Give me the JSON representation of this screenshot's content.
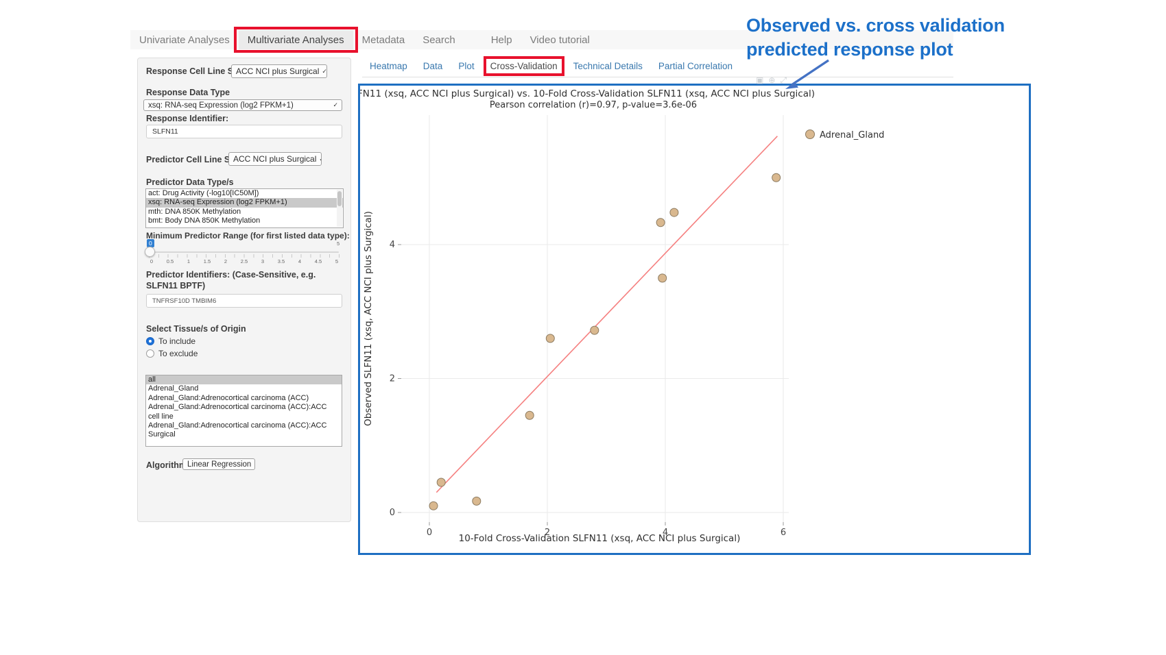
{
  "navbar": {
    "items": [
      {
        "label": "Univariate Analyses",
        "active": false,
        "highlighted": false
      },
      {
        "label": "Multivariate Analyses",
        "active": true,
        "highlighted": true
      },
      {
        "label": "Metadata",
        "active": false,
        "highlighted": false
      },
      {
        "label": "Search",
        "active": false,
        "highlighted": false
      },
      {
        "label": "Help",
        "active": false,
        "highlighted": false,
        "gap_before": true
      },
      {
        "label": "Video tutorial",
        "active": false,
        "highlighted": false
      }
    ]
  },
  "sidebar": {
    "response_cell_line_set": {
      "label": "Response Cell Line Set",
      "value": "ACC NCI plus Surgical"
    },
    "response_data_type": {
      "label": "Response Data Type",
      "value": "xsq: RNA-seq Expression (log2 FPKM+1)"
    },
    "response_identifier": {
      "label": "Response Identifier:",
      "value": "SLFN11"
    },
    "predictor_cell_line_set": {
      "label": "Predictor Cell Line Set",
      "value": "ACC NCI plus Surgical"
    },
    "predictor_data_types": {
      "label": "Predictor Data Type/s",
      "options": [
        {
          "label": "act: Drug Activity (-log10[IC50M])",
          "selected": false
        },
        {
          "label": "xsq: RNA-seq Expression (log2 FPKM+1)",
          "selected": true
        },
        {
          "label": "mth: DNA 850K Methylation",
          "selected": false
        },
        {
          "label": "bmt: Body DNA 850K Methylation",
          "selected": false
        }
      ]
    },
    "min_predictor_range": {
      "label": "Minimum Predictor Range (for first listed data type):",
      "value": "0",
      "max_label": "5",
      "tick_labels": [
        "0",
        "0.5",
        "1",
        "1.5",
        "2",
        "2.5",
        "3",
        "3.5",
        "4",
        "4.5",
        "5"
      ]
    },
    "predictor_identifiers": {
      "label": "Predictor Identifiers: (Case-Sensitive, e.g. SLFN11 BPTF)",
      "value": "TNFRSF10D TMBIM6"
    },
    "tissue": {
      "label": "Select Tissue/s of Origin",
      "radios": [
        {
          "label": "To include",
          "selected": true
        },
        {
          "label": "To exclude",
          "selected": false
        }
      ],
      "options": [
        {
          "label": "all",
          "selected": true
        },
        {
          "label": "Adrenal_Gland",
          "selected": false
        },
        {
          "label": "Adrenal_Gland:Adrenocortical carcinoma (ACC)",
          "selected": false
        },
        {
          "label": "Adrenal_Gland:Adrenocortical carcinoma (ACC):ACC cell line",
          "selected": false
        },
        {
          "label": "Adrenal_Gland:Adrenocortical carcinoma (ACC):ACC Surgical",
          "selected": false
        }
      ]
    },
    "algorithm": {
      "label": "Algorithm",
      "value": "Linear Regression"
    }
  },
  "tabs": {
    "items": [
      {
        "label": "Heatmap",
        "active": false
      },
      {
        "label": "Data",
        "active": false
      },
      {
        "label": "Plot",
        "active": false
      },
      {
        "label": "Cross-Validation",
        "active": true,
        "highlighted": true
      },
      {
        "label": "Technical Details",
        "active": false
      },
      {
        "label": "Partial Correlation",
        "active": false
      }
    ]
  },
  "modebar": {
    "icons": [
      {
        "name": "camera-icon",
        "glyph": "▣"
      },
      {
        "name": "zoom-icon",
        "glyph": "⊕"
      },
      {
        "name": "autoscale-icon",
        "glyph": "⤢"
      }
    ]
  },
  "annotation": {
    "line1": "Observed vs. cross validation",
    "line2": "predicted response plot"
  },
  "chart_data": {
    "type": "scatter",
    "title": "FN11 (xsq, ACC NCI plus Surgical) vs. 10-Fold Cross-Validation SLFN11 (xsq, ACC NCI plus Surgical)",
    "subtitle": "Pearson correlation (r)=0.97, p-value=3.6e-06",
    "xlabel": "10-Fold Cross-Validation SLFN11 (xsq, ACC NCI plus Surgical)",
    "ylabel": "Observed SLFN11 (xsq, ACC NCI plus Surgical)",
    "x_ticks": [
      0,
      2,
      4,
      6
    ],
    "y_ticks": [
      0,
      2,
      4
    ],
    "xlim": [
      -0.48,
      6.1
    ],
    "ylim": [
      -0.15,
      5.95
    ],
    "grid": true,
    "legend_position": "top-right",
    "pearson_r": 0.97,
    "p_value": "3.6e-06",
    "series": [
      {
        "name": "Adrenal_Gland",
        "marker_color": "#d9b88f",
        "marker_stroke": "#8c7b61",
        "points": [
          [
            0.07,
            0.1
          ],
          [
            0.2,
            0.45
          ],
          [
            0.8,
            0.17
          ],
          [
            1.7,
            1.45
          ],
          [
            2.05,
            2.6
          ],
          [
            2.8,
            2.72
          ],
          [
            3.95,
            3.5
          ],
          [
            3.92,
            4.33
          ],
          [
            4.15,
            4.48
          ],
          [
            5.88,
            5.0
          ]
        ]
      }
    ],
    "regression_line": {
      "x1": 0.12,
      "y1": 0.3,
      "x2": 5.9,
      "y2": 5.62,
      "color": "#f58080"
    }
  },
  "colors": {
    "highlight_red": "#e8112d",
    "plot_border_blue": "#1e6fc2",
    "annotation_blue": "#1c70c9",
    "arrow_blue": "#4472c4",
    "link_blue": "#3978ae",
    "point_fill": "#d9b88f",
    "line_pink": "#f58080"
  }
}
